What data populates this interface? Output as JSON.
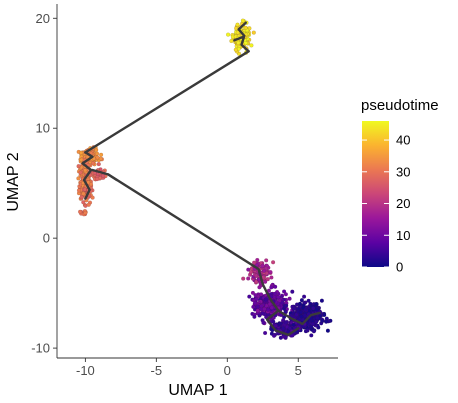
{
  "chart_data": {
    "type": "scatter",
    "title": "",
    "xlabel": "UMAP 1",
    "ylabel": "UMAP 2",
    "xlim": [
      -12,
      7.8
    ],
    "ylim": [
      -10.9,
      21.3
    ],
    "x_ticks": [
      -10,
      -5,
      0,
      5
    ],
    "y_ticks": [
      -10,
      0,
      10,
      20
    ],
    "x_tick_labels": [
      "-10",
      "-5",
      "0",
      "5"
    ],
    "y_tick_labels": [
      "-10",
      "0",
      "10",
      "20"
    ],
    "grid": false,
    "legend": {
      "title": "pseudotime",
      "placement": "right",
      "range": [
        0,
        46
      ],
      "ticks": [
        0,
        10,
        20,
        30,
        40
      ],
      "tick_labels": [
        "0",
        "10",
        "20",
        "30",
        "40"
      ],
      "colors": [
        "#0d0887",
        "#5b02a3",
        "#9a179b",
        "#cb4678",
        "#eb7852",
        "#fbb32f",
        "#f0f921"
      ]
    },
    "clusters": [
      {
        "center": [
          1.0,
          18.3
        ],
        "spread": [
          0.45,
          0.85
        ],
        "count": 220,
        "pseudotime": [
          41,
          46
        ]
      },
      {
        "center": [
          -9.7,
          7.4
        ],
        "spread": [
          0.55,
          0.7
        ],
        "count": 160,
        "pseudotime": [
          30,
          36
        ]
      },
      {
        "center": [
          -10.0,
          5.0
        ],
        "spread": [
          0.4,
          1.4
        ],
        "count": 150,
        "pseudotime": [
          27,
          34
        ]
      },
      {
        "center": [
          -9.0,
          5.8
        ],
        "spread": [
          0.4,
          0.4
        ],
        "count": 50,
        "pseudotime": [
          25,
          30
        ]
      },
      {
        "center": [
          -10.1,
          2.3
        ],
        "spread": [
          0.2,
          0.2
        ],
        "count": 10,
        "pseudotime": [
          28,
          32
        ]
      },
      {
        "center": [
          2.3,
          -3.2
        ],
        "spread": [
          0.6,
          0.9
        ],
        "count": 110,
        "pseudotime": [
          12,
          22
        ]
      },
      {
        "center": [
          3.0,
          -6.1
        ],
        "spread": [
          0.9,
          1.1
        ],
        "count": 280,
        "pseudotime": [
          4,
          13
        ]
      },
      {
        "center": [
          5.6,
          -7.1
        ],
        "spread": [
          0.95,
          0.95
        ],
        "count": 420,
        "pseudotime": [
          0,
          4
        ]
      },
      {
        "center": [
          4.2,
          -8.3
        ],
        "spread": [
          0.8,
          0.55
        ],
        "count": 180,
        "pseudotime": [
          1,
          7
        ]
      }
    ],
    "trajectory": [
      [
        [
          -10.0,
          7.8
        ],
        [
          1.5,
          17.0
        ]
      ],
      [
        [
          1.5,
          17.0
        ],
        [
          1.0,
          17.6
        ],
        [
          1.2,
          18.4
        ],
        [
          0.8,
          19.0
        ],
        [
          1.3,
          19.6
        ]
      ],
      [
        [
          0.5,
          18.0
        ],
        [
          1.1,
          18.3
        ]
      ],
      [
        [
          -10.0,
          7.8
        ],
        [
          -9.5,
          7.4
        ],
        [
          -10.2,
          6.8
        ],
        [
          -9.6,
          6.2
        ],
        [
          -10.1,
          5.3
        ],
        [
          -9.7,
          4.4
        ],
        [
          -10.0,
          3.6
        ]
      ],
      [
        [
          -9.5,
          6.2
        ],
        [
          -8.4,
          5.8
        ],
        [
          -7.8,
          5.3
        ]
      ],
      [
        [
          -8.4,
          5.8
        ],
        [
          2.2,
          -2.8
        ],
        [
          2.5,
          -4.2
        ],
        [
          3.0,
          -5.5
        ],
        [
          3.6,
          -6.6
        ],
        [
          4.5,
          -7.3
        ],
        [
          5.3,
          -7.8
        ],
        [
          5.9,
          -7.0
        ],
        [
          6.5,
          -6.8
        ]
      ],
      [
        [
          3.6,
          -6.6
        ],
        [
          2.8,
          -7.4
        ],
        [
          3.4,
          -8.4
        ],
        [
          4.3,
          -8.8
        ],
        [
          5.0,
          -8.2
        ]
      ]
    ]
  }
}
